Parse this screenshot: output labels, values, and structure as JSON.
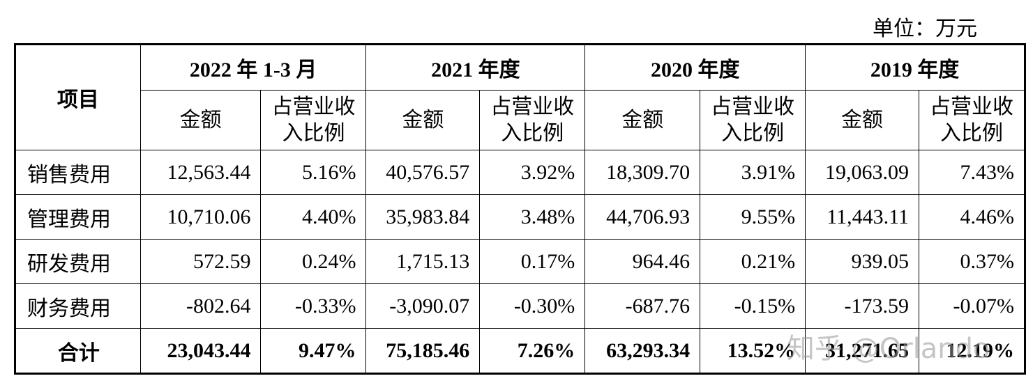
{
  "unit": "单位：万元",
  "table": {
    "item_header": "项目",
    "periods": [
      {
        "label": "2022 年 1-3 月",
        "amount": "金额",
        "ratio": "占营业收入比例"
      },
      {
        "label": "2021 年度",
        "amount": "金额",
        "ratio": "占营业收入比例"
      },
      {
        "label": "2020 年度",
        "amount": "金额",
        "ratio": "占营业收入比例"
      },
      {
        "label": "2019 年度",
        "amount": "金额",
        "ratio": "占营业收入比例"
      }
    ],
    "rows": [
      {
        "label": "销售费用",
        "cells": [
          "12,563.44",
          "5.16%",
          "40,576.57",
          "3.92%",
          "18,309.70",
          "3.91%",
          "19,063.09",
          "7.43%"
        ]
      },
      {
        "label": "管理费用",
        "cells": [
          "10,710.06",
          "4.40%",
          "35,983.84",
          "3.48%",
          "44,706.93",
          "9.55%",
          "11,443.11",
          "4.46%"
        ]
      },
      {
        "label": "研发费用",
        "cells": [
          "572.59",
          "0.24%",
          "1,715.13",
          "0.17%",
          "964.46",
          "0.21%",
          "939.05",
          "0.37%"
        ]
      },
      {
        "label": "财务费用",
        "cells": [
          "-802.64",
          "-0.33%",
          "-3,090.07",
          "-0.30%",
          "-687.76",
          "-0.15%",
          "-173.59",
          "-0.07%"
        ]
      }
    ],
    "total": {
      "label": "合计",
      "cells": [
        "23,043.44",
        "9.47%",
        "75,185.46",
        "7.26%",
        "63,293.34",
        "13.52%",
        "31,271.65",
        "12.19%"
      ]
    }
  },
  "watermark": "知乎 @Orlando"
}
